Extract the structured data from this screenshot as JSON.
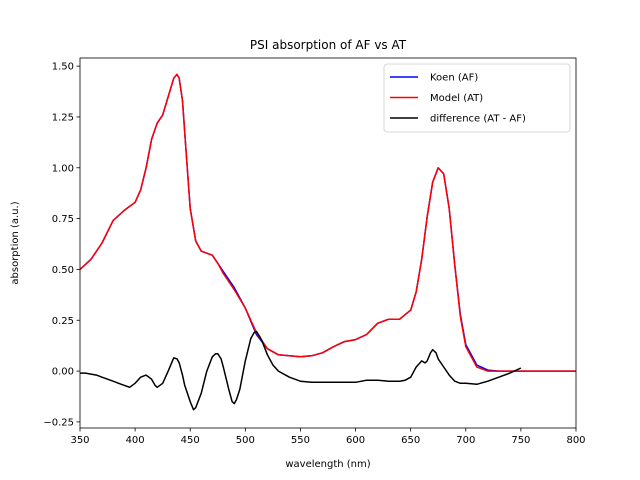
{
  "chart_data": {
    "type": "line",
    "title": "PSI absorption of AF vs AT",
    "xlabel": "wavelength (nm)",
    "ylabel": "absorption (a.u.)",
    "xlim": [
      350,
      800
    ],
    "ylim": [
      -0.28,
      1.54
    ],
    "xticks": [
      "350",
      "400",
      "450",
      "500",
      "550",
      "600",
      "650",
      "700",
      "750",
      "800"
    ],
    "yticks": [
      "−0.25",
      "0.00",
      "0.25",
      "0.50",
      "0.75",
      "1.00",
      "1.25",
      "1.50"
    ],
    "legend_position": "top-right",
    "grid": false,
    "series": [
      {
        "name": "Koen (AF)",
        "color": "#0000ff",
        "x": [
          350,
          360,
          370,
          380,
          390,
          400,
          405,
          410,
          415,
          420,
          425,
          430,
          435,
          438,
          440,
          443,
          446,
          450,
          455,
          460,
          465,
          470,
          475,
          480,
          490,
          500,
          510,
          520,
          530,
          540,
          550,
          560,
          570,
          580,
          590,
          600,
          610,
          620,
          630,
          640,
          650,
          655,
          660,
          665,
          670,
          675,
          680,
          685,
          690,
          695,
          700,
          710,
          720,
          730,
          740,
          750,
          760,
          780,
          800
        ],
        "y": [
          0.5,
          0.55,
          0.63,
          0.74,
          0.79,
          0.83,
          0.89,
          1.0,
          1.14,
          1.22,
          1.26,
          1.35,
          1.44,
          1.46,
          1.44,
          1.33,
          1.1,
          0.8,
          0.64,
          0.59,
          0.58,
          0.57,
          0.53,
          0.49,
          0.41,
          0.31,
          0.18,
          0.11,
          0.08,
          0.075,
          0.07,
          0.075,
          0.09,
          0.12,
          0.145,
          0.155,
          0.18,
          0.235,
          0.255,
          0.255,
          0.3,
          0.39,
          0.55,
          0.76,
          0.93,
          1.0,
          0.97,
          0.8,
          0.52,
          0.28,
          0.13,
          0.03,
          0.005,
          0.0,
          0.0,
          0.0,
          0.0,
          0.0,
          0.0
        ]
      },
      {
        "name": "Model (AT)",
        "color": "#ff0000",
        "x": [
          350,
          360,
          370,
          380,
          390,
          400,
          405,
          410,
          415,
          420,
          425,
          430,
          435,
          438,
          440,
          443,
          446,
          450,
          455,
          460,
          465,
          470,
          475,
          480,
          490,
          500,
          510,
          520,
          530,
          540,
          550,
          560,
          570,
          580,
          590,
          600,
          610,
          620,
          630,
          640,
          650,
          655,
          660,
          665,
          670,
          675,
          680,
          685,
          690,
          695,
          700,
          710,
          720,
          730,
          740,
          750,
          760,
          780,
          800
        ],
        "y": [
          0.5,
          0.55,
          0.63,
          0.74,
          0.79,
          0.83,
          0.89,
          1.0,
          1.14,
          1.22,
          1.26,
          1.35,
          1.44,
          1.46,
          1.44,
          1.33,
          1.1,
          0.8,
          0.64,
          0.59,
          0.58,
          0.57,
          0.53,
          0.48,
          0.4,
          0.31,
          0.19,
          0.11,
          0.08,
          0.075,
          0.07,
          0.075,
          0.09,
          0.12,
          0.145,
          0.155,
          0.18,
          0.235,
          0.255,
          0.255,
          0.3,
          0.39,
          0.55,
          0.76,
          0.93,
          1.0,
          0.97,
          0.8,
          0.52,
          0.27,
          0.12,
          0.02,
          0.0,
          0.0,
          0.0,
          0.0,
          0.0,
          0.0,
          0.0
        ]
      },
      {
        "name": "difference (AT - AF)",
        "color": "#000000",
        "x": [
          350,
          355,
          360,
          365,
          370,
          375,
          380,
          385,
          390,
          395,
          400,
          405,
          410,
          415,
          418,
          420,
          425,
          430,
          435,
          438,
          440,
          443,
          445,
          450,
          453,
          455,
          460,
          465,
          470,
          473,
          475,
          478,
          480,
          485,
          488,
          490,
          492,
          495,
          500,
          505,
          508,
          510,
          513,
          515,
          520,
          525,
          530,
          540,
          550,
          560,
          570,
          580,
          590,
          600,
          610,
          620,
          630,
          640,
          645,
          650,
          655,
          660,
          663,
          665,
          668,
          670,
          673,
          675,
          680,
          685,
          690,
          695,
          700,
          710,
          720,
          730,
          740,
          750
        ],
        "y": [
          -0.01,
          -0.01,
          -0.015,
          -0.02,
          -0.03,
          -0.04,
          -0.05,
          -0.06,
          -0.07,
          -0.08,
          -0.06,
          -0.03,
          -0.02,
          -0.04,
          -0.07,
          -0.08,
          -0.06,
          0.0,
          0.065,
          0.06,
          0.04,
          -0.02,
          -0.07,
          -0.15,
          -0.19,
          -0.18,
          -0.11,
          0.0,
          0.07,
          0.085,
          0.085,
          0.06,
          0.02,
          -0.09,
          -0.15,
          -0.16,
          -0.14,
          -0.09,
          0.05,
          0.16,
          0.19,
          0.195,
          0.17,
          0.15,
          0.08,
          0.03,
          0.0,
          -0.03,
          -0.05,
          -0.055,
          -0.055,
          -0.055,
          -0.055,
          -0.055,
          -0.045,
          -0.045,
          -0.05,
          -0.05,
          -0.045,
          -0.03,
          0.02,
          0.05,
          0.04,
          0.05,
          0.09,
          0.105,
          0.09,
          0.06,
          0.02,
          -0.02,
          -0.05,
          -0.06,
          -0.06,
          -0.065,
          -0.05,
          -0.03,
          -0.01,
          0.015
        ]
      }
    ]
  }
}
